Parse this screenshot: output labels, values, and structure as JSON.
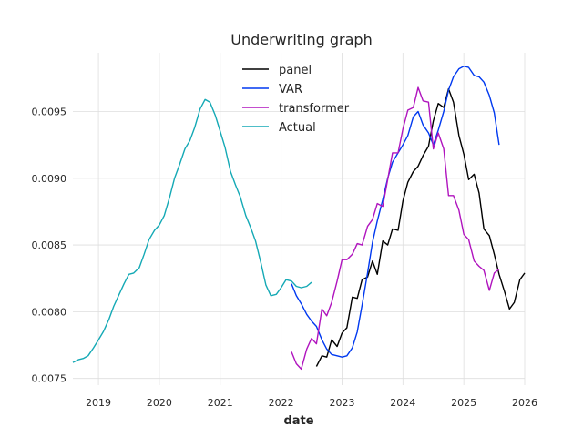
{
  "chart_data": {
    "type": "line",
    "title": "Underwriting graph",
    "xlabel": "date",
    "ylabel": "",
    "xlim": [
      2018.58,
      2026.0
    ],
    "ylim": [
      0.00745,
      0.00994
    ],
    "grid": true,
    "legend_position": "top-center",
    "x_ticks": [
      2019,
      2020,
      2021,
      2022,
      2023,
      2024,
      2025,
      2026
    ],
    "x_tick_labels": [
      "2019",
      "2020",
      "2021",
      "2022",
      "2023",
      "2024",
      "2025",
      "2026"
    ],
    "y_ticks": [
      0.0075,
      0.008,
      0.0085,
      0.009,
      0.0095
    ],
    "y_tick_labels": [
      "0.0075",
      "0.0080",
      "0.0085",
      "0.0090",
      "0.0095"
    ],
    "series": [
      {
        "name": "panel",
        "color": "#000000",
        "x": [
          2022.58,
          2022.67,
          2022.75,
          2022.83,
          2022.92,
          2023.0,
          2023.08,
          2023.17,
          2023.25,
          2023.33,
          2023.42,
          2023.5,
          2023.58,
          2023.67,
          2023.75,
          2023.83,
          2023.92,
          2024.0,
          2024.08,
          2024.17,
          2024.25,
          2024.33,
          2024.42,
          2024.5,
          2024.58,
          2024.67,
          2024.75,
          2024.83,
          2024.92,
          2025.0,
          2025.08,
          2025.17,
          2025.25,
          2025.33,
          2025.42,
          2025.5,
          2025.58,
          2025.67,
          2025.75,
          2025.83,
          2025.92,
          2026.0
        ],
        "values": [
          0.00759,
          0.00767,
          0.00766,
          0.00779,
          0.00774,
          0.00784,
          0.00788,
          0.00811,
          0.0081,
          0.00824,
          0.00826,
          0.00838,
          0.00828,
          0.00853,
          0.0085,
          0.00862,
          0.00861,
          0.00883,
          0.00897,
          0.00905,
          0.00909,
          0.00917,
          0.00924,
          0.00943,
          0.00956,
          0.00953,
          0.00967,
          0.00957,
          0.00932,
          0.00918,
          0.00899,
          0.00903,
          0.00889,
          0.00862,
          0.00857,
          0.00843,
          0.00828,
          0.00815,
          0.00802,
          0.00807,
          0.00824,
          0.00829
        ]
      },
      {
        "name": "VAR",
        "color": "#0039f0",
        "x": [
          2022.17,
          2022.25,
          2022.33,
          2022.42,
          2022.5,
          2022.58,
          2022.67,
          2022.75,
          2022.83,
          2022.92,
          2023.0,
          2023.08,
          2023.17,
          2023.25,
          2023.33,
          2023.42,
          2023.5,
          2023.58,
          2023.67,
          2023.75,
          2023.83,
          2023.92,
          2024.0,
          2024.08,
          2024.17,
          2024.25,
          2024.33,
          2024.42,
          2024.5,
          2024.58,
          2024.67,
          2024.75,
          2024.83,
          2024.92,
          2025.0,
          2025.08,
          2025.17,
          2025.25,
          2025.33,
          2025.42,
          2025.5,
          2025.58
        ],
        "values": [
          0.00821,
          0.00812,
          0.00806,
          0.00798,
          0.00793,
          0.00789,
          0.00779,
          0.00772,
          0.00768,
          0.00767,
          0.00766,
          0.00767,
          0.00773,
          0.00785,
          0.00805,
          0.00829,
          0.00852,
          0.00868,
          0.00884,
          0.009,
          0.00912,
          0.00919,
          0.00925,
          0.00932,
          0.00946,
          0.0095,
          0.0094,
          0.00934,
          0.00925,
          0.00936,
          0.0095,
          0.00966,
          0.00976,
          0.00982,
          0.00984,
          0.00983,
          0.00977,
          0.00976,
          0.00972,
          0.00962,
          0.00949,
          0.00925
        ]
      },
      {
        "name": "transformer",
        "color": "#b014be",
        "x": [
          2022.17,
          2022.25,
          2022.33,
          2022.42,
          2022.5,
          2022.58,
          2022.67,
          2022.75,
          2022.83,
          2022.92,
          2023.0,
          2023.08,
          2023.17,
          2023.25,
          2023.33,
          2023.42,
          2023.5,
          2023.58,
          2023.67,
          2023.75,
          2023.83,
          2023.92,
          2024.0,
          2024.08,
          2024.17,
          2024.25,
          2024.33,
          2024.42,
          2024.5,
          2024.58,
          2024.67,
          2024.75,
          2024.83,
          2024.92,
          2025.0,
          2025.08,
          2025.17,
          2025.25,
          2025.33,
          2025.42,
          2025.5,
          2025.58
        ],
        "values": [
          0.0077,
          0.00761,
          0.00757,
          0.00772,
          0.0078,
          0.00776,
          0.00802,
          0.00797,
          0.00807,
          0.00823,
          0.00839,
          0.00839,
          0.00843,
          0.00851,
          0.0085,
          0.00864,
          0.00869,
          0.00881,
          0.00879,
          0.00899,
          0.00919,
          0.00919,
          0.00937,
          0.00951,
          0.00953,
          0.00968,
          0.00958,
          0.00957,
          0.00922,
          0.00934,
          0.00922,
          0.00887,
          0.00887,
          0.00876,
          0.00858,
          0.00854,
          0.00838,
          0.00834,
          0.00831,
          0.00816,
          0.00829,
          0.00832
        ]
      },
      {
        "name": "Actual",
        "color": "#14a9b5",
        "x": [
          2018.58,
          2018.67,
          2018.75,
          2018.83,
          2018.92,
          2019.0,
          2019.08,
          2019.17,
          2019.25,
          2019.33,
          2019.42,
          2019.5,
          2019.58,
          2019.67,
          2019.75,
          2019.83,
          2019.92,
          2020.0,
          2020.08,
          2020.17,
          2020.25,
          2020.33,
          2020.42,
          2020.5,
          2020.58,
          2020.67,
          2020.75,
          2020.83,
          2020.92,
          2021.0,
          2021.08,
          2021.17,
          2021.25,
          2021.33,
          2021.42,
          2021.5,
          2021.58,
          2021.67,
          2021.75,
          2021.83,
          2021.92,
          2022.0,
          2022.08,
          2022.17,
          2022.25,
          2022.33,
          2022.42,
          2022.5
        ],
        "values": [
          0.00762,
          0.00764,
          0.00765,
          0.00767,
          0.00773,
          0.00779,
          0.00785,
          0.00794,
          0.00804,
          0.00812,
          0.00821,
          0.00828,
          0.00829,
          0.00833,
          0.00843,
          0.00854,
          0.00861,
          0.00865,
          0.00872,
          0.00886,
          0.009,
          0.0091,
          0.00922,
          0.00928,
          0.00938,
          0.00952,
          0.00959,
          0.00957,
          0.00947,
          0.00935,
          0.00923,
          0.00905,
          0.00895,
          0.00886,
          0.00872,
          0.00863,
          0.00853,
          0.00836,
          0.0082,
          0.00812,
          0.00813,
          0.00818,
          0.00824,
          0.00823,
          0.00819,
          0.00818,
          0.00819,
          0.00822
        ]
      }
    ]
  }
}
